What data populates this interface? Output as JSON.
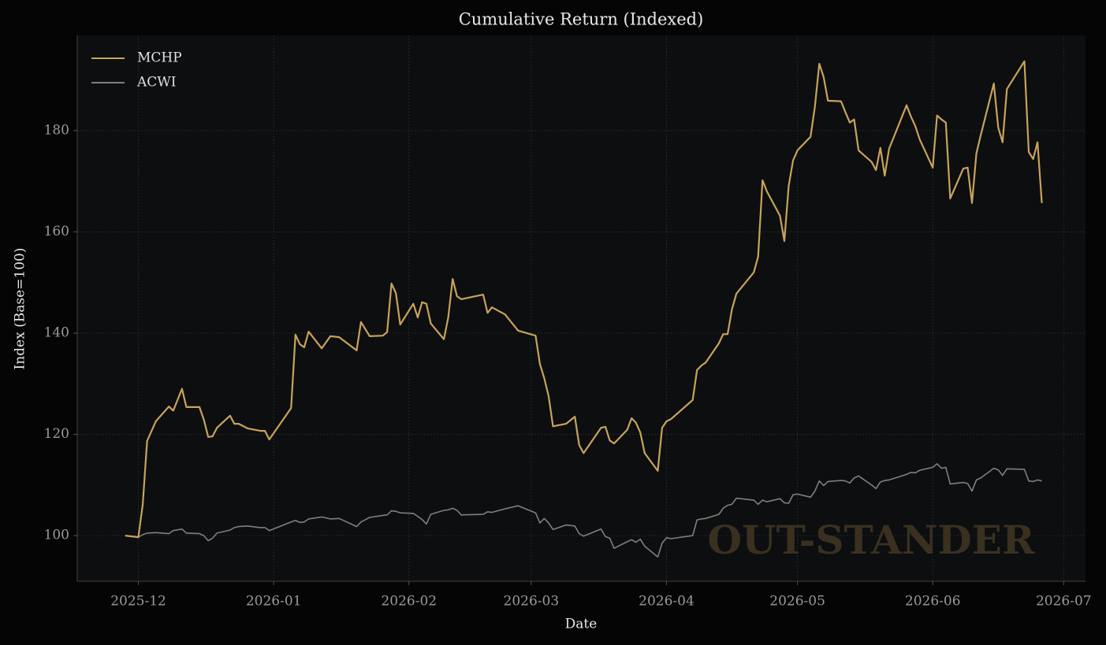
{
  "chart_data": {
    "type": "line",
    "title": "Cumulative Return (Indexed)",
    "xlabel": "Date",
    "ylabel": "Index (Base=100)",
    "annotation": "OUT-STANDER",
    "x": [
      "2025-11-28",
      "2025-12-01",
      "2025-12-02",
      "2025-12-03",
      "2025-12-05",
      "2025-12-08",
      "2025-12-09",
      "2025-12-11",
      "2025-12-12",
      "2025-12-15",
      "2025-12-16",
      "2025-12-17",
      "2025-12-18",
      "2025-12-19",
      "2025-12-22",
      "2025-12-23",
      "2025-12-24",
      "2025-12-26",
      "2025-12-29",
      "2025-12-30",
      "2025-12-31",
      "2026-01-05",
      "2026-01-06",
      "2026-01-07",
      "2026-01-08",
      "2026-01-09",
      "2026-01-12",
      "2026-01-14",
      "2026-01-16",
      "2026-01-20",
      "2026-01-21",
      "2026-01-23",
      "2026-01-26",
      "2026-01-27",
      "2026-01-28",
      "2026-01-29",
      "2026-01-30",
      "2026-02-02",
      "2026-02-03",
      "2026-02-04",
      "2026-02-05",
      "2026-02-06",
      "2026-02-09",
      "2026-02-10",
      "2026-02-11",
      "2026-02-12",
      "2026-02-13",
      "2026-02-18",
      "2026-02-19",
      "2026-02-20",
      "2026-02-23",
      "2026-02-26",
      "2026-03-02",
      "2026-03-03",
      "2026-03-04",
      "2026-03-05",
      "2026-03-06",
      "2026-03-09",
      "2026-03-11",
      "2026-03-12",
      "2026-03-13",
      "2026-03-17",
      "2026-03-18",
      "2026-03-19",
      "2026-03-20",
      "2026-03-23",
      "2026-03-24",
      "2026-03-25",
      "2026-03-26",
      "2026-03-27",
      "2026-03-30",
      "2026-03-31",
      "2026-04-01",
      "2026-04-02",
      "2026-04-07",
      "2026-04-08",
      "2026-04-09",
      "2026-04-10",
      "2026-04-13",
      "2026-04-14",
      "2026-04-15",
      "2026-04-16",
      "2026-04-17",
      "2026-04-21",
      "2026-04-22",
      "2026-04-23",
      "2026-04-24",
      "2026-04-27",
      "2026-04-28",
      "2026-04-29",
      "2026-04-30",
      "2026-05-01",
      "2026-05-04",
      "2026-05-05",
      "2026-05-06",
      "2026-05-07",
      "2026-05-08",
      "2026-05-11",
      "2026-05-12",
      "2026-05-13",
      "2026-05-14",
      "2026-05-15",
      "2026-05-18",
      "2026-05-19",
      "2026-05-20",
      "2026-05-21",
      "2026-05-22",
      "2026-05-26",
      "2026-05-27",
      "2026-05-28",
      "2026-05-29",
      "2026-06-01",
      "2026-06-02",
      "2026-06-03",
      "2026-06-04",
      "2026-06-05",
      "2026-06-08",
      "2026-06-09",
      "2026-06-10",
      "2026-06-11",
      "2026-06-12",
      "2026-06-15",
      "2026-06-16",
      "2026-06-17",
      "2026-06-18",
      "2026-06-22",
      "2026-06-23",
      "2026-06-24",
      "2026-06-25",
      "2026-06-26"
    ],
    "series": [
      {
        "name": "MCHP",
        "color": "#c8a35a",
        "values": [
          100,
          99.7,
          106.2,
          118.7,
          122.6,
          125.5,
          124.7,
          129.0,
          125.4,
          125.4,
          122.9,
          119.5,
          119.6,
          121.3,
          123.7,
          122.1,
          122.1,
          121.2,
          120.7,
          120.7,
          119.0,
          125.2,
          139.7,
          137.8,
          137.2,
          140.3,
          137.0,
          139.4,
          139.2,
          136.6,
          142.2,
          139.4,
          139.5,
          140.2,
          149.8,
          147.9,
          141.7,
          145.8,
          143.1,
          146.1,
          145.8,
          141.9,
          138.8,
          143.1,
          150.7,
          147.3,
          146.7,
          147.6,
          144.0,
          145.1,
          143.7,
          140.5,
          139.5,
          133.9,
          131.1,
          127.5,
          121.6,
          122.1,
          123.5,
          117.9,
          116.3,
          121.3,
          121.5,
          118.8,
          118.2,
          120.9,
          123.2,
          122.3,
          120.4,
          116.3,
          112.8,
          121.3,
          122.6,
          123.0,
          126.8,
          132.7,
          133.6,
          134.2,
          138.0,
          139.8,
          139.8,
          144.7,
          147.8,
          152.0,
          155.1,
          170.2,
          168.0,
          163.2,
          158.2,
          169.1,
          174.1,
          176.1,
          178.8,
          184.7,
          193.2,
          190.6,
          185.9,
          185.8,
          183.6,
          181.6,
          182.2,
          176.1,
          173.8,
          172.2,
          176.6,
          171.1,
          176.4,
          185.0,
          182.8,
          180.9,
          178.3,
          172.7,
          183.0,
          182.2,
          181.6,
          166.6,
          172.5,
          172.7,
          165.7,
          175.5,
          179.1,
          189.3,
          180.6,
          177.7,
          188.2,
          193.7,
          175.8,
          174.4,
          177.7,
          165.7
        ]
      },
      {
        "name": "ACWI",
        "color": "#7f7f7f",
        "values": [
          100,
          99.7,
          100.2,
          100.5,
          100.6,
          100.4,
          101.0,
          101.3,
          100.5,
          100.4,
          100.0,
          99.0,
          99.5,
          100.5,
          101.1,
          101.6,
          101.8,
          101.9,
          101.6,
          101.6,
          101.0,
          102.7,
          103.0,
          102.6,
          102.7,
          103.3,
          103.7,
          103.3,
          103.4,
          101.8,
          102.7,
          103.6,
          104.0,
          104.1,
          104.9,
          104.8,
          104.5,
          104.4,
          103.8,
          103.2,
          102.3,
          104.2,
          105.0,
          105.1,
          105.4,
          105.0,
          104.1,
          104.2,
          104.7,
          104.6,
          105.3,
          105.9,
          104.5,
          102.5,
          103.4,
          102.5,
          101.2,
          102.1,
          101.9,
          100.4,
          99.9,
          101.3,
          99.8,
          99.5,
          97.5,
          98.8,
          99.2,
          98.7,
          99.3,
          97.9,
          95.8,
          98.5,
          99.6,
          99.4,
          100.0,
          103.1,
          103.3,
          103.4,
          104.2,
          105.4,
          106.0,
          106.2,
          107.4,
          107.0,
          106.2,
          107.0,
          106.7,
          107.3,
          106.5,
          106.4,
          108.1,
          108.2,
          107.6,
          108.8,
          110.8,
          109.9,
          110.7,
          110.9,
          110.8,
          110.4,
          111.4,
          111.8,
          110.0,
          109.3,
          110.6,
          110.9,
          111.0,
          112.1,
          112.5,
          112.4,
          112.9,
          113.5,
          114.2,
          113.3,
          113.5,
          110.2,
          110.5,
          110.3,
          108.8,
          111.0,
          111.4,
          113.3,
          113.0,
          111.9,
          113.2,
          113.1,
          110.8,
          110.7,
          111.0,
          110.8
        ]
      }
    ],
    "xlim": [
      "2025-11-17",
      "2026-07-06"
    ],
    "xticks": [
      {
        "value": "2025-12-01",
        "label": "2025-12"
      },
      {
        "value": "2026-01-01",
        "label": "2026-01"
      },
      {
        "value": "2026-02-01",
        "label": "2026-02"
      },
      {
        "value": "2026-03-01",
        "label": "2026-03"
      },
      {
        "value": "2026-04-01",
        "label": "2026-04"
      },
      {
        "value": "2026-05-01",
        "label": "2026-05"
      },
      {
        "value": "2026-06-01",
        "label": "2026-06"
      },
      {
        "value": "2026-07-01",
        "label": "2026-07"
      }
    ],
    "ylim": [
      91,
      198.8
    ],
    "yticks": [
      100,
      120,
      140,
      160,
      180
    ],
    "grid": true,
    "legend": "upper left"
  }
}
